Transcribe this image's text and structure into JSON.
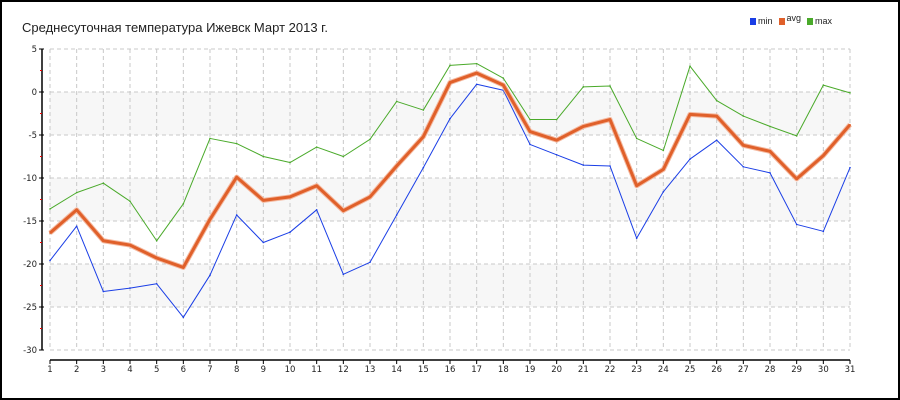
{
  "chart_data": {
    "type": "line",
    "title": "Среднесуточная температура Ижевск  Март 2013 г.",
    "xlabel": "",
    "ylabel": "",
    "x": [
      1,
      2,
      3,
      4,
      5,
      6,
      7,
      8,
      9,
      10,
      11,
      12,
      13,
      14,
      15,
      16,
      17,
      18,
      19,
      20,
      21,
      22,
      23,
      24,
      25,
      26,
      27,
      28,
      29,
      30,
      31
    ],
    "ylim": [
      -30,
      5
    ],
    "yticks": [
      5,
      0,
      -5,
      -10,
      -15,
      -20,
      -25,
      -30
    ],
    "grid": true,
    "legend_position": "top-right",
    "series": [
      {
        "name": "min",
        "color": "#1a3ee6",
        "values": [
          -19.6,
          -15.6,
          -23.2,
          -22.8,
          -22.3,
          -26.2,
          -21.3,
          -14.3,
          -17.5,
          -16.3,
          -13.7,
          -21.2,
          -19.8,
          -14.3,
          -8.8,
          -3.1,
          0.9,
          0.2,
          -6.1,
          -7.3,
          -8.5,
          -8.6,
          -17.0,
          -11.6,
          -7.8,
          -5.6,
          -8.7,
          -9.4,
          -15.4,
          -16.2,
          -8.8
        ]
      },
      {
        "name": "avg",
        "color": "#e0602a",
        "values": [
          -16.4,
          -13.7,
          -17.3,
          -17.8,
          -19.3,
          -20.4,
          -14.8,
          -9.9,
          -12.6,
          -12.2,
          -10.9,
          -13.8,
          -12.2,
          -8.6,
          -5.2,
          1.1,
          2.2,
          0.8,
          -4.6,
          -5.6,
          -4.0,
          -3.2,
          -10.9,
          -9.0,
          -2.6,
          -2.8,
          -6.2,
          -6.9,
          -10.1,
          -7.4,
          -3.8
        ]
      },
      {
        "name": "max",
        "color": "#4aaa2a",
        "values": [
          -13.6,
          -11.7,
          -10.6,
          -12.7,
          -17.3,
          -13.0,
          -5.4,
          -6.0,
          -7.5,
          -8.2,
          -6.4,
          -7.5,
          -5.5,
          -1.1,
          -2.1,
          3.1,
          3.3,
          1.6,
          -3.2,
          -3.2,
          0.6,
          0.7,
          -5.4,
          -6.8,
          3.0,
          -1.0,
          -2.8,
          -4.0,
          -5.1,
          0.8,
          -0.1
        ]
      }
    ]
  }
}
